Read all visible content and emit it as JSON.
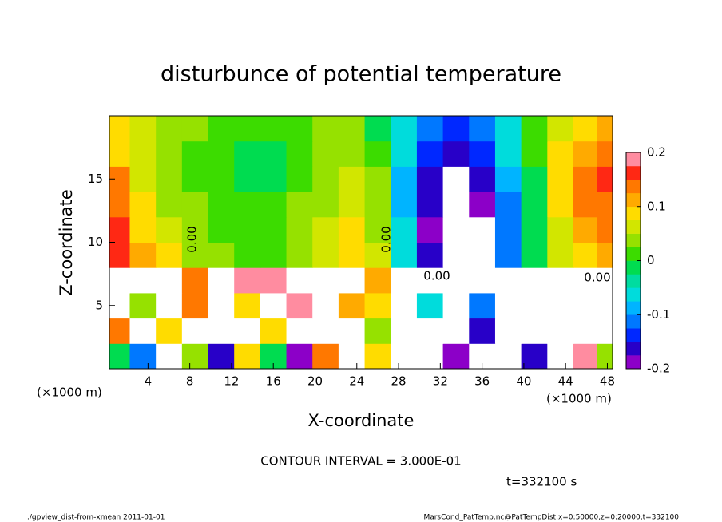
{
  "chart_data": {
    "type": "heatmap",
    "title": "disturbunce of potential temperature",
    "x_label": "X-coordinate",
    "y_label": "Z-coordinate",
    "x_unit_left": "(×1000 m)",
    "x_unit_right": "(×1000 m)",
    "contour_interval": "CONTOUR INTERVAL = 3.000E-01",
    "time": "t=332100 s",
    "footer_left": "./gpview_dist-from-xmean  2011-01-01",
    "footer_right": "MarsCond_PatTemp.nc@PatTempDist,x=0:50000,z=0:20000,t=332100",
    "contour_labels": [
      "0.00",
      "0.00",
      "0.00",
      "0.00"
    ],
    "xlim": [
      0.3,
      48.5
    ],
    "ylim": [
      0,
      20
    ],
    "xticks": [
      4,
      8,
      12,
      16,
      20,
      24,
      28,
      32,
      36,
      40,
      44,
      48
    ],
    "yticks": [
      5,
      10,
      15
    ],
    "x": [
      1,
      3.5,
      6,
      8.5,
      11,
      13.5,
      16,
      18.5,
      21,
      23.5,
      26,
      28.5,
      31,
      33.5,
      36,
      38.5,
      41,
      43.5,
      46,
      48
    ],
    "y": [
      1,
      3,
      5,
      7,
      9,
      11,
      13,
      15,
      17,
      19
    ],
    "values": [
      [
        0.0,
        -0.1,
        0.3,
        0.05,
        -0.15,
        0.1,
        0.0,
        -0.2,
        0.15,
        0.3,
        0.1,
        0.3,
        0.3,
        -0.2,
        0.3,
        0.3,
        -0.15,
        0.3,
        0.2,
        0.05
      ],
      [
        0.15,
        0.3,
        0.1,
        0.3,
        0.25,
        0.3,
        0.1,
        0.25,
        0.3,
        0.3,
        0.05,
        0.3,
        0.3,
        0.25,
        -0.15,
        0.3,
        0.3,
        0.3,
        0.3,
        0.3
      ],
      [
        0.3,
        0.05,
        0.3,
        0.15,
        0.3,
        0.1,
        0.3,
        0.2,
        0.3,
        0.12,
        0.1,
        0.25,
        -0.05,
        0.3,
        -0.1,
        0.25,
        0.3,
        0.25,
        0.3,
        0.3
      ],
      [
        0.25,
        0.3,
        0.25,
        0.15,
        0.25,
        0.18,
        0.2,
        0.3,
        0.25,
        0.22,
        0.12,
        0.3,
        -0.25,
        -0.3,
        0.25,
        -0.3,
        0.25,
        0.3,
        0.25,
        0.22
      ],
      [
        0.17,
        0.12,
        0.08,
        0.05,
        0.03,
        0.02,
        0.02,
        0.04,
        0.07,
        0.09,
        0.06,
        -0.05,
        -0.15,
        -0.3,
        -0.3,
        -0.12,
        0.0,
        0.06,
        0.1,
        0.12
      ],
      [
        0.16,
        0.1,
        0.06,
        0.03,
        0.02,
        0.01,
        0.01,
        0.03,
        0.06,
        0.08,
        0.05,
        -0.07,
        -0.18,
        -0.3,
        -0.25,
        -0.12,
        0.0,
        0.07,
        0.12,
        0.14
      ],
      [
        0.15,
        0.08,
        0.05,
        0.03,
        0.02,
        0.01,
        0.01,
        0.03,
        0.05,
        0.07,
        0.04,
        -0.08,
        -0.17,
        -0.25,
        -0.2,
        -0.1,
        0.0,
        0.08,
        0.13,
        0.15
      ],
      [
        0.13,
        0.07,
        0.04,
        0.02,
        0.01,
        0.0,
        0.0,
        0.02,
        0.04,
        0.06,
        0.03,
        -0.08,
        -0.15,
        -0.22,
        -0.17,
        -0.08,
        0.0,
        0.08,
        0.14,
        0.16
      ],
      [
        0.1,
        0.07,
        0.04,
        0.02,
        0.01,
        0.0,
        0.0,
        0.02,
        0.04,
        0.05,
        0.02,
        -0.07,
        -0.13,
        -0.17,
        -0.14,
        -0.07,
        0.01,
        0.08,
        0.12,
        0.14
      ],
      [
        0.08,
        0.06,
        0.04,
        0.03,
        0.02,
        0.01,
        0.01,
        0.02,
        0.03,
        0.04,
        0.0,
        -0.05,
        -0.1,
        -0.13,
        -0.11,
        -0.05,
        0.02,
        0.07,
        0.1,
        0.12
      ]
    ],
    "levels": [
      -0.2,
      -0.175,
      -0.15,
      -0.125,
      -0.1,
      -0.075,
      -0.05,
      -0.025,
      0,
      0.025,
      0.05,
      0.075,
      0.1,
      0.125,
      0.15,
      0.175,
      0.2
    ],
    "colors": [
      "#8c00c8",
      "#2800c8",
      "#0028ff",
      "#0078ff",
      "#00b4ff",
      "#00dcdc",
      "#00dca0",
      "#00dc50",
      "#3cdc00",
      "#96e100",
      "#d2e600",
      "#ffdc00",
      "#ffaa00",
      "#ff7800",
      "#ff2814",
      "#ff8ca0"
    ],
    "out_of_range_color": "#ffffff",
    "cbar_lim": [
      -0.2,
      0.2
    ],
    "cbar_ticks": [
      0.2,
      0.1,
      0,
      -0.1,
      -0.2
    ]
  }
}
